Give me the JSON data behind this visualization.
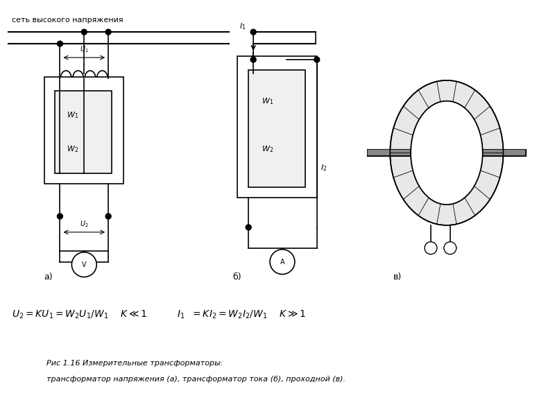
{
  "bg_color": "#ffffff",
  "line_color": "#000000",
  "title_text": "сеть высокого напряжения",
  "formula_text": "$U_2 = KU_1 = W_2U_1/W_1$    $K \\ll 1$          $I_1\\ \\ = KI_2 = W_2I_2/W_1$    $K \\gg 1$",
  "caption_line1": "Рис 1.16 Измерительные трансформаторы:",
  "caption_line2": "трансформатор напряжения (а), трансформатор тока (б), проходной (в).",
  "label_a": "а)",
  "label_b": "б)",
  "label_c": "в)"
}
